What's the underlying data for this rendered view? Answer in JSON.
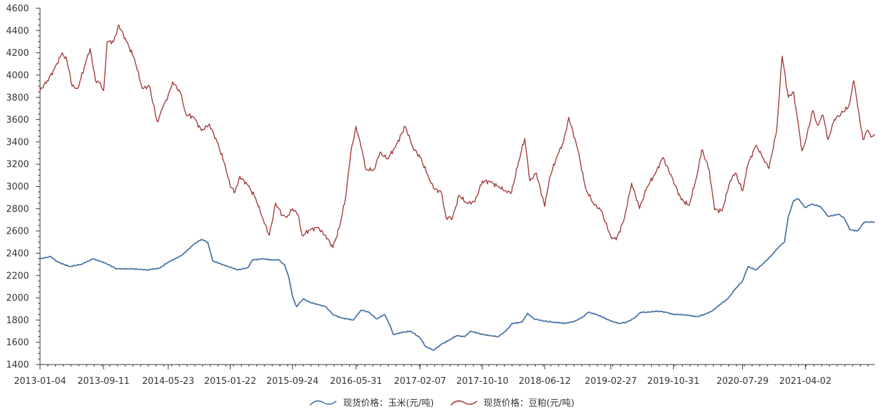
{
  "chart_data": {
    "type": "line",
    "title": "",
    "xlabel": "",
    "ylabel": "",
    "ylim": [
      1400,
      4600
    ],
    "yticks": [
      1400,
      1600,
      1800,
      2000,
      2200,
      2400,
      2600,
      2800,
      3000,
      3200,
      3400,
      3600,
      3800,
      4000,
      4200,
      4400,
      4600
    ],
    "xticks": [
      "2013-01-04",
      "2013-09-11",
      "2014-05-23",
      "2015-01-22",
      "2015-09-24",
      "2016-05-31",
      "2017-02-07",
      "2017-10-10",
      "2018-06-12",
      "2019-02-27",
      "2019-10-31",
      "2020-07-29",
      "2021-04-02"
    ],
    "x_start": "2013-01-04",
    "x_end": "2021-12-31",
    "legend_position": "bottom-center",
    "grid": false,
    "series": [
      {
        "name": "现货价格：玉米(元/吨)",
        "color": "#4a73a6",
        "points": [
          [
            "2013-01-04",
            2350
          ],
          [
            "2013-02-15",
            2370
          ],
          [
            "2013-03-15",
            2320
          ],
          [
            "2013-05-01",
            2280
          ],
          [
            "2013-06-15",
            2300
          ],
          [
            "2013-08-01",
            2350
          ],
          [
            "2013-09-20",
            2310
          ],
          [
            "2013-11-01",
            2260
          ],
          [
            "2014-01-01",
            2260
          ],
          [
            "2014-03-01",
            2250
          ],
          [
            "2014-04-20",
            2265
          ],
          [
            "2014-05-23",
            2320
          ],
          [
            "2014-07-15",
            2380
          ],
          [
            "2014-09-01",
            2480
          ],
          [
            "2014-10-01",
            2525
          ],
          [
            "2014-10-25",
            2500
          ],
          [
            "2014-11-15",
            2330
          ],
          [
            "2015-01-01",
            2290
          ],
          [
            "2015-02-22",
            2250
          ],
          [
            "2015-04-01",
            2270
          ],
          [
            "2015-04-20",
            2340
          ],
          [
            "2015-06-01",
            2350
          ],
          [
            "2015-07-01",
            2340
          ],
          [
            "2015-08-01",
            2340
          ],
          [
            "2015-08-25",
            2290
          ],
          [
            "2015-09-10",
            2180
          ],
          [
            "2015-09-24",
            2010
          ],
          [
            "2015-10-10",
            1920
          ],
          [
            "2015-11-05",
            1990
          ],
          [
            "2015-12-01",
            1960
          ],
          [
            "2016-01-01",
            1940
          ],
          [
            "2016-02-01",
            1920
          ],
          [
            "2016-03-01",
            1850
          ],
          [
            "2016-04-01",
            1820
          ],
          [
            "2016-05-20",
            1800
          ],
          [
            "2016-06-20",
            1890
          ],
          [
            "2016-07-20",
            1870
          ],
          [
            "2016-08-20",
            1810
          ],
          [
            "2016-09-20",
            1850
          ],
          [
            "2016-10-10",
            1760
          ],
          [
            "2016-10-25",
            1670
          ],
          [
            "2016-12-01",
            1690
          ],
          [
            "2017-01-01",
            1700
          ],
          [
            "2017-02-07",
            1640
          ],
          [
            "2017-03-01",
            1560
          ],
          [
            "2017-04-01",
            1530
          ],
          [
            "2017-05-01",
            1580
          ],
          [
            "2017-06-01",
            1620
          ],
          [
            "2017-07-01",
            1660
          ],
          [
            "2017-08-01",
            1650
          ],
          [
            "2017-08-25",
            1700
          ],
          [
            "2017-10-10",
            1670
          ],
          [
            "2017-11-10",
            1660
          ],
          [
            "2017-12-10",
            1650
          ],
          [
            "2018-01-10",
            1700
          ],
          [
            "2018-02-05",
            1770
          ],
          [
            "2018-03-15",
            1780
          ],
          [
            "2018-04-05",
            1860
          ],
          [
            "2018-05-01",
            1810
          ],
          [
            "2018-06-12",
            1790
          ],
          [
            "2018-07-20",
            1780
          ],
          [
            "2018-09-01",
            1770
          ],
          [
            "2018-10-10",
            1790
          ],
          [
            "2018-11-10",
            1830
          ],
          [
            "2018-12-01",
            1870
          ],
          [
            "2019-01-01",
            1850
          ],
          [
            "2019-02-10",
            1810
          ],
          [
            "2019-02-27",
            1790
          ],
          [
            "2019-04-01",
            1770
          ],
          [
            "2019-05-01",
            1780
          ],
          [
            "2019-06-01",
            1820
          ],
          [
            "2019-06-25",
            1870
          ],
          [
            "2019-07-20",
            1870
          ],
          [
            "2019-09-01",
            1880
          ],
          [
            "2019-10-01",
            1870
          ],
          [
            "2019-10-31",
            1850
          ],
          [
            "2019-12-01",
            1850
          ],
          [
            "2020-01-01",
            1840
          ],
          [
            "2020-02-01",
            1830
          ],
          [
            "2020-03-01",
            1850
          ],
          [
            "2020-04-01",
            1880
          ],
          [
            "2020-05-01",
            1940
          ],
          [
            "2020-06-01",
            1990
          ],
          [
            "2020-07-01",
            2080
          ],
          [
            "2020-07-29",
            2150
          ],
          [
            "2020-08-20",
            2280
          ],
          [
            "2020-09-20",
            2250
          ],
          [
            "2020-10-20",
            2310
          ],
          [
            "2020-11-20",
            2380
          ],
          [
            "2020-12-20",
            2460
          ],
          [
            "2021-01-10",
            2500
          ],
          [
            "2021-01-25",
            2730
          ],
          [
            "2021-02-15",
            2870
          ],
          [
            "2021-03-05",
            2890
          ],
          [
            "2021-04-02",
            2810
          ],
          [
            "2021-04-25",
            2840
          ],
          [
            "2021-06-01",
            2820
          ],
          [
            "2021-07-01",
            2730
          ],
          [
            "2021-08-10",
            2750
          ],
          [
            "2021-09-01",
            2720
          ],
          [
            "2021-09-25",
            2610
          ],
          [
            "2021-10-25",
            2600
          ],
          [
            "2021-11-20",
            2680
          ],
          [
            "2021-12-31",
            2680
          ]
        ]
      },
      {
        "name": "现货价格：豆粕(元/吨)",
        "color": "#a23b3a",
        "points": [
          [
            "2013-01-04",
            3860
          ],
          [
            "2013-02-01",
            3950
          ],
          [
            "2013-03-01",
            4050
          ],
          [
            "2013-04-01",
            4200
          ],
          [
            "2013-04-20",
            4130
          ],
          [
            "2013-05-10",
            3900
          ],
          [
            "2013-06-01",
            3880
          ],
          [
            "2013-07-01",
            4100
          ],
          [
            "2013-07-20",
            4240
          ],
          [
            "2013-08-10",
            3950
          ],
          [
            "2013-08-25",
            3930
          ],
          [
            "2013-09-11",
            3860
          ],
          [
            "2013-09-25",
            4300
          ],
          [
            "2013-10-20",
            4300
          ],
          [
            "2013-11-10",
            4450
          ],
          [
            "2013-12-10",
            4300
          ],
          [
            "2014-01-10",
            4150
          ],
          [
            "2014-02-10",
            3880
          ],
          [
            "2014-03-10",
            3900
          ],
          [
            "2014-04-10",
            3580
          ],
          [
            "2014-05-01",
            3700
          ],
          [
            "2014-05-23",
            3820
          ],
          [
            "2014-06-10",
            3940
          ],
          [
            "2014-07-10",
            3840
          ],
          [
            "2014-08-01",
            3650
          ],
          [
            "2014-09-01",
            3620
          ],
          [
            "2014-10-01",
            3500
          ],
          [
            "2014-11-01",
            3560
          ],
          [
            "2014-12-01",
            3400
          ],
          [
            "2015-01-01",
            3200
          ],
          [
            "2015-01-22",
            3000
          ],
          [
            "2015-02-10",
            2950
          ],
          [
            "2015-03-01",
            3090
          ],
          [
            "2015-04-01",
            3010
          ],
          [
            "2015-05-01",
            2900
          ],
          [
            "2015-06-01",
            2700
          ],
          [
            "2015-06-25",
            2560
          ],
          [
            "2015-07-20",
            2850
          ],
          [
            "2015-08-15",
            2740
          ],
          [
            "2015-09-01",
            2720
          ],
          [
            "2015-09-24",
            2800
          ],
          [
            "2015-10-15",
            2750
          ],
          [
            "2015-11-01",
            2560
          ],
          [
            "2015-12-01",
            2610
          ],
          [
            "2016-01-01",
            2630
          ],
          [
            "2016-02-01",
            2560
          ],
          [
            "2016-03-01",
            2450
          ],
          [
            "2016-03-25",
            2620
          ],
          [
            "2016-04-20",
            2900
          ],
          [
            "2016-05-10",
            3300
          ],
          [
            "2016-05-31",
            3540
          ],
          [
            "2016-06-20",
            3350
          ],
          [
            "2016-07-10",
            3150
          ],
          [
            "2016-08-10",
            3150
          ],
          [
            "2016-09-01",
            3300
          ],
          [
            "2016-10-01",
            3250
          ],
          [
            "2016-11-01",
            3350
          ],
          [
            "2016-12-10",
            3540
          ],
          [
            "2017-01-10",
            3350
          ],
          [
            "2017-02-07",
            3260
          ],
          [
            "2017-03-10",
            3100
          ],
          [
            "2017-04-01",
            2980
          ],
          [
            "2017-05-01",
            2950
          ],
          [
            "2017-05-20",
            2720
          ],
          [
            "2017-06-15",
            2720
          ],
          [
            "2017-07-10",
            2920
          ],
          [
            "2017-08-10",
            2850
          ],
          [
            "2017-09-10",
            2860
          ],
          [
            "2017-10-10",
            3050
          ],
          [
            "2017-11-10",
            3040
          ],
          [
            "2017-12-10",
            3000
          ],
          [
            "2018-01-10",
            2960
          ],
          [
            "2018-02-01",
            2940
          ],
          [
            "2018-03-01",
            3220
          ],
          [
            "2018-03-25",
            3430
          ],
          [
            "2018-04-15",
            3050
          ],
          [
            "2018-05-10",
            3120
          ],
          [
            "2018-06-12",
            2820
          ],
          [
            "2018-07-01",
            3080
          ],
          [
            "2018-08-01",
            3280
          ],
          [
            "2018-08-25",
            3400
          ],
          [
            "2018-09-15",
            3620
          ],
          [
            "2018-10-20",
            3330
          ],
          [
            "2018-11-20",
            2980
          ],
          [
            "2018-12-20",
            2850
          ],
          [
            "2019-01-20",
            2780
          ],
          [
            "2019-02-27",
            2550
          ],
          [
            "2019-03-20",
            2520
          ],
          [
            "2019-04-20",
            2700
          ],
          [
            "2019-05-20",
            3030
          ],
          [
            "2019-06-20",
            2800
          ],
          [
            "2019-07-20",
            3000
          ],
          [
            "2019-08-20",
            3110
          ],
          [
            "2019-09-20",
            3260
          ],
          [
            "2019-10-31",
            3050
          ],
          [
            "2019-12-01",
            2880
          ],
          [
            "2020-01-01",
            2830
          ],
          [
            "2020-02-01",
            3100
          ],
          [
            "2020-02-20",
            3330
          ],
          [
            "2020-03-20",
            3150
          ],
          [
            "2020-04-10",
            2790
          ],
          [
            "2020-05-10",
            2780
          ],
          [
            "2020-06-10",
            3050
          ],
          [
            "2020-07-01",
            3120
          ],
          [
            "2020-07-29",
            2960
          ],
          [
            "2020-08-20",
            3200
          ],
          [
            "2020-09-20",
            3370
          ],
          [
            "2020-10-20",
            3250
          ],
          [
            "2020-11-10",
            3160
          ],
          [
            "2020-12-10",
            3500
          ],
          [
            "2021-01-01",
            4170
          ],
          [
            "2021-01-25",
            3800
          ],
          [
            "2021-02-15",
            3850
          ],
          [
            "2021-03-01",
            3620
          ],
          [
            "2021-03-20",
            3320
          ],
          [
            "2021-04-02",
            3400
          ],
          [
            "2021-05-01",
            3680
          ],
          [
            "2021-05-20",
            3550
          ],
          [
            "2021-06-10",
            3640
          ],
          [
            "2021-07-01",
            3420
          ],
          [
            "2021-07-25",
            3600
          ],
          [
            "2021-08-20",
            3650
          ],
          [
            "2021-09-20",
            3720
          ],
          [
            "2021-10-10",
            3950
          ],
          [
            "2021-10-25",
            3720
          ],
          [
            "2021-11-15",
            3420
          ],
          [
            "2021-12-01",
            3500
          ],
          [
            "2021-12-20",
            3450
          ],
          [
            "2021-12-31",
            3470
          ]
        ]
      }
    ]
  }
}
